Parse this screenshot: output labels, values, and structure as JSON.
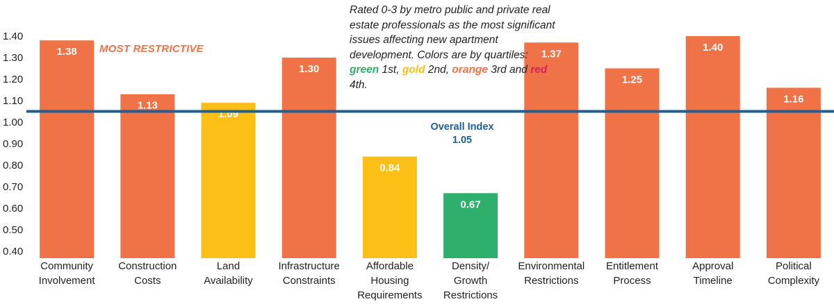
{
  "chart_data": {
    "type": "bar",
    "categories": [
      [
        "Community",
        "Involvement"
      ],
      [
        "Construction",
        "Costs"
      ],
      [
        "Land",
        "Availability"
      ],
      [
        "Infrastructure",
        "Constraints"
      ],
      [
        "Affordable",
        "Housing",
        "Requirements"
      ],
      [
        "Density/",
        "Growth",
        "Restrictions"
      ],
      [
        "Environmental",
        "Restrictions"
      ],
      [
        "Entitlement",
        "Process"
      ],
      [
        "Approval",
        "Timeline"
      ],
      [
        "Political",
        "Complexity"
      ]
    ],
    "values": [
      1.38,
      1.13,
      1.09,
      1.3,
      0.84,
      0.67,
      1.37,
      1.25,
      1.4,
      1.16
    ],
    "value_labels": [
      "1.38",
      "1.13",
      "1.09",
      "1.30",
      "0.84",
      "0.67",
      "1.37",
      "1.25",
      "1.40",
      "1.16"
    ],
    "quartiles": [
      "orange",
      "orange",
      "gold",
      "orange",
      "gold",
      "green",
      "orange",
      "orange",
      "orange",
      "orange"
    ],
    "ylim": [
      0.4,
      1.4
    ],
    "yticks": [
      "0.40",
      "0.50",
      "0.60",
      "0.70",
      "0.80",
      "0.90",
      "1.00",
      "1.10",
      "1.20",
      "1.30",
      "1.40"
    ],
    "reference_line": {
      "value": 1.05,
      "label": "Overall Index",
      "value_label": "1.05"
    },
    "annotation_most": "MOST RESTRICTIVE",
    "note": {
      "lead": "Rated 0-3 by metro public and private real estate professionals as the most significant issues affecting new apartment development. Colors are by quartiles: ",
      "green_word": "green",
      "green_rank": " 1st, ",
      "gold_word": "gold",
      "gold_rank": " 2nd, ",
      "orange_word": "orange",
      "orange_rank": " 3rd and ",
      "red_word": "red",
      "red_rank": " 4th."
    },
    "colors": {
      "orange": "#f07247",
      "gold": "#fbbf16",
      "green": "#2eaf6c",
      "red": "#d6245c",
      "reference_line": "#1f5f94"
    }
  }
}
